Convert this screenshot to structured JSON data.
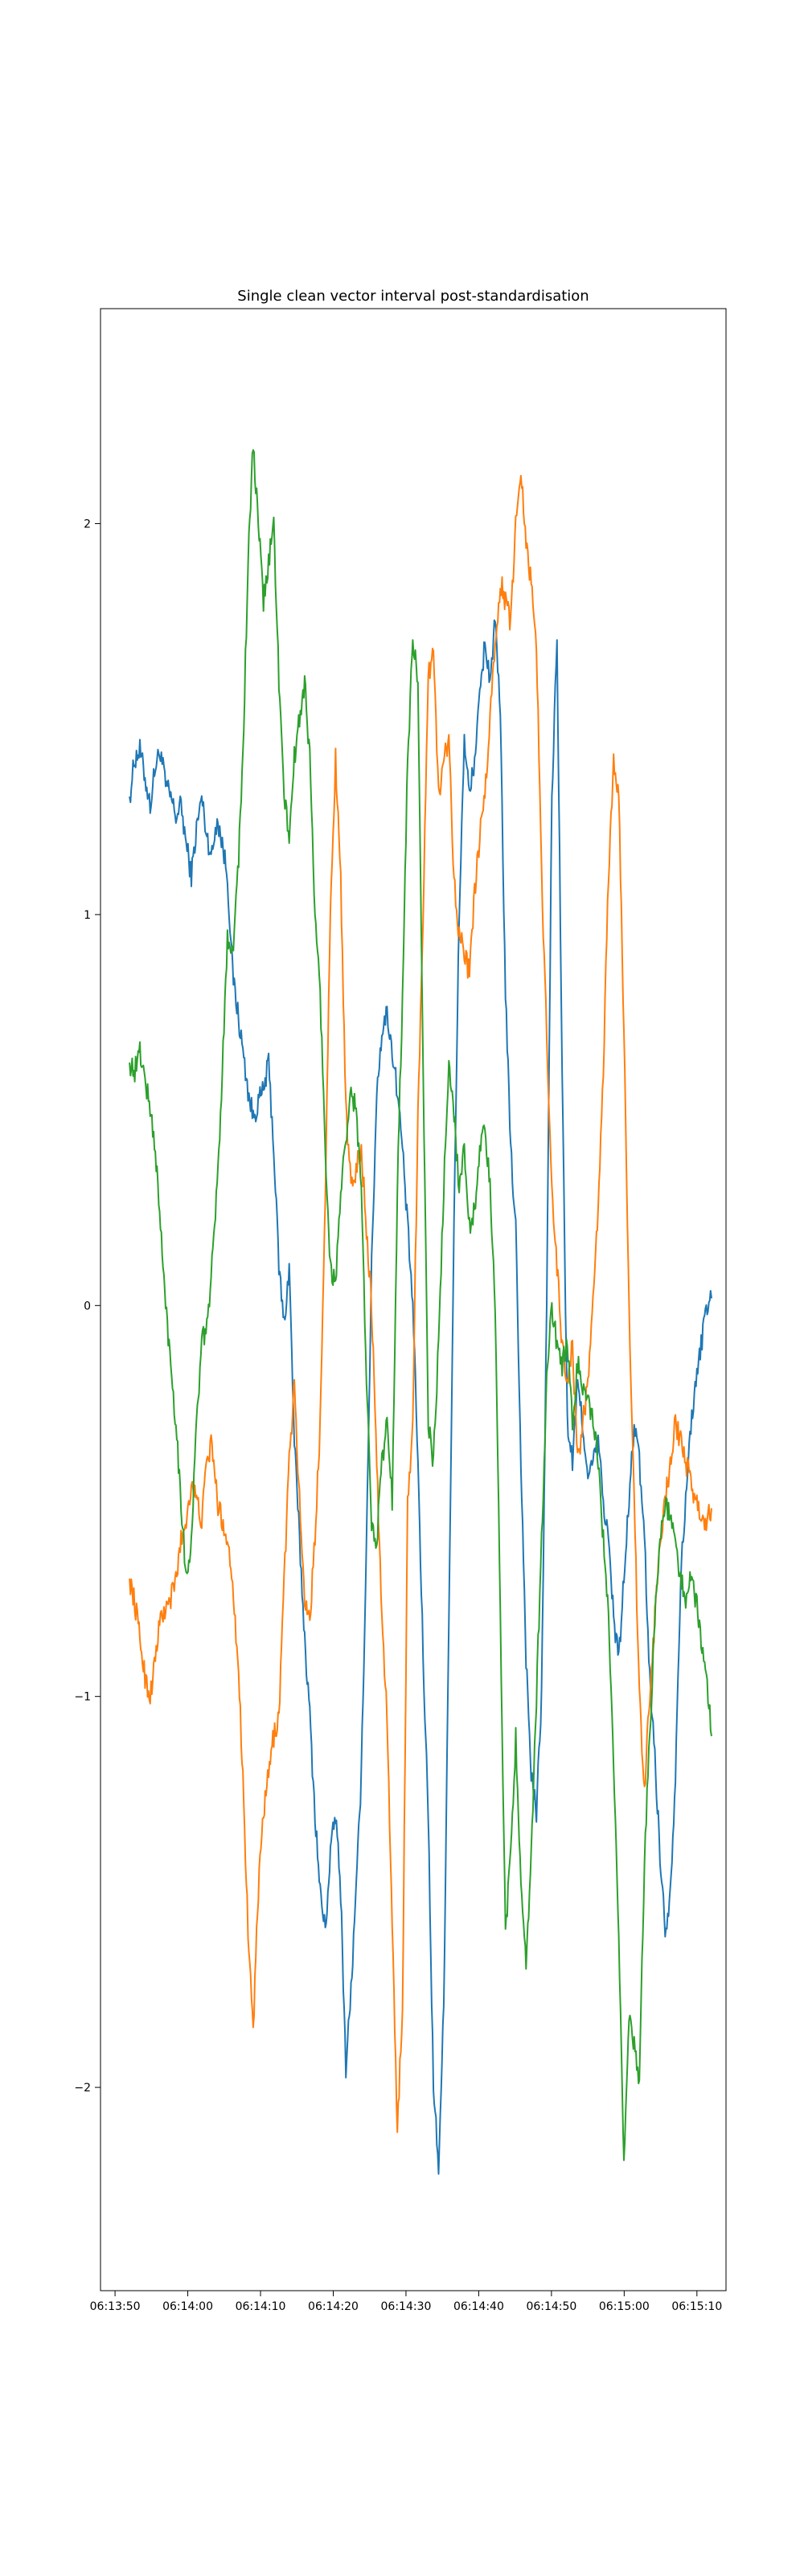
{
  "chart_data": {
    "type": "line",
    "title": "Single clean vector interval post-standardisation",
    "xlabel": "",
    "ylabel": "",
    "x_unit": "time",
    "x_start": "06:13:52",
    "x_end": "06:15:12",
    "xlim": [
      "06:13:48",
      "06:15:14"
    ],
    "ylim": [
      -2.52,
      2.55
    ],
    "grid": false,
    "legend": "none",
    "x_ticks": [
      "06:13:50",
      "06:14:00",
      "06:14:10",
      "06:14:20",
      "06:14:30",
      "06:14:40",
      "06:14:50",
      "06:15:00",
      "06:15:10"
    ],
    "y_ticks": [
      -2,
      -1,
      0,
      1,
      2
    ],
    "y_tick_labels": [
      "−2",
      "−1",
      "0",
      "1",
      "2"
    ],
    "series": [
      {
        "color": "#1f77b4",
        "values": [
          1.3,
          1.4,
          1.42,
          1.35,
          1.28,
          1.38,
          1.42,
          1.33,
          1.3,
          1.25,
          1.28,
          1.18,
          1.1,
          1.22,
          1.3,
          1.2,
          1.15,
          1.25,
          1.18,
          1.1,
          0.85,
          0.75,
          0.65,
          0.55,
          0.48,
          0.52,
          0.55,
          0.62,
          0.4,
          0.1,
          -0.05,
          0.1,
          -0.35,
          -0.6,
          -0.85,
          -1.05,
          -1.3,
          -1.5,
          -1.6,
          -1.4,
          -1.3,
          -1.5,
          -1.95,
          -1.75,
          -1.5,
          -1.2,
          -0.6,
          0.1,
          0.55,
          0.7,
          0.75,
          0.65,
          0.55,
          0.4,
          0.2,
          0.0,
          -0.4,
          -0.9,
          -1.3,
          -2.0,
          -2.2,
          -1.8,
          -0.8,
          0.2,
          1.0,
          1.45,
          1.3,
          1.4,
          1.55,
          1.7,
          1.6,
          1.75,
          1.5,
          0.8,
          0.4,
          0.2,
          -0.4,
          -0.9,
          -1.2,
          -1.3,
          -1.0,
          0.0,
          1.3,
          1.7,
          0.6,
          -0.3,
          -0.4,
          -0.2,
          -0.3,
          -0.45,
          -0.4,
          -0.35,
          -0.5,
          -0.6,
          -0.8,
          -0.9,
          -0.7,
          -0.5,
          -0.3,
          -0.4,
          -0.6,
          -0.95,
          -1.15,
          -1.4,
          -1.6,
          -1.5,
          -1.2,
          -0.7,
          -0.5,
          -0.3,
          -0.2,
          -0.1,
          0.0,
          0.02
        ]
      },
      {
        "color": "#ff7f0e",
        "values": [
          -0.7,
          -0.76,
          -0.85,
          -0.95,
          -1.0,
          -0.9,
          -0.8,
          -0.78,
          -0.75,
          -0.7,
          -0.6,
          -0.55,
          -0.45,
          -0.5,
          -0.55,
          -0.4,
          -0.35,
          -0.5,
          -0.55,
          -0.6,
          -0.7,
          -0.9,
          -1.2,
          -1.6,
          -1.85,
          -1.5,
          -1.3,
          -1.2,
          -1.1,
          -1.05,
          -0.7,
          -0.4,
          -0.2,
          -0.5,
          -0.75,
          -0.8,
          -0.6,
          -0.3,
          0.3,
          1.0,
          1.4,
          1.1,
          0.5,
          0.3,
          0.35,
          0.4,
          0.2,
          0.0,
          -0.4,
          -0.8,
          -1.05,
          -1.6,
          -2.1,
          -1.8,
          -0.5,
          -0.3,
          0.5,
          1.0,
          1.6,
          1.7,
          1.3,
          1.4,
          1.45,
          1.1,
          0.95,
          0.9,
          0.85,
          1.05,
          1.2,
          1.3,
          1.5,
          1.7,
          1.85,
          1.8,
          1.75,
          2.0,
          2.15,
          1.95,
          1.85,
          1.7,
          1.1,
          0.7,
          0.3,
          0.1,
          -0.1,
          -0.2,
          -0.1,
          -0.4,
          -0.3,
          -0.2,
          0.0,
          0.25,
          0.6,
          1.1,
          1.4,
          1.3,
          0.7,
          0.0,
          -0.5,
          -1.0,
          -1.25,
          -1.0,
          -0.8,
          -0.6,
          -0.5,
          -0.4,
          -0.3,
          -0.35,
          -0.4,
          -0.45,
          -0.5,
          -0.55,
          -0.55,
          -0.52
        ]
      },
      {
        "color": "#2ca02c",
        "values": [
          0.62,
          0.6,
          0.65,
          0.58,
          0.5,
          0.4,
          0.2,
          0.0,
          -0.15,
          -0.3,
          -0.5,
          -0.7,
          -0.6,
          -0.3,
          -0.1,
          -0.05,
          0.1,
          0.3,
          0.6,
          0.95,
          0.9,
          1.1,
          1.4,
          1.9,
          2.2,
          2.0,
          1.8,
          1.9,
          2.0,
          1.6,
          1.3,
          1.2,
          1.4,
          1.5,
          1.6,
          1.4,
          1.0,
          0.8,
          0.4,
          0.1,
          0.05,
          0.3,
          0.4,
          0.55,
          0.5,
          0.3,
          -0.2,
          -0.55,
          -0.6,
          -0.4,
          -0.3,
          -0.5,
          0.3,
          0.8,
          1.4,
          1.7,
          1.6,
          0.6,
          -0.3,
          -0.4,
          -0.1,
          0.3,
          0.6,
          0.5,
          0.3,
          0.4,
          0.2,
          0.25,
          0.4,
          0.45,
          0.3,
          0.0,
          -0.8,
          -1.6,
          -1.4,
          -1.1,
          -1.5,
          -1.7,
          -1.4,
          -1.0,
          -0.6,
          -0.2,
          0.0,
          -0.1,
          -0.15,
          -0.1,
          -0.3,
          -0.15,
          -0.2,
          -0.25,
          -0.3,
          -0.4,
          -0.6,
          -0.8,
          -1.2,
          -1.6,
          -2.2,
          -1.8,
          -1.9,
          -2.0,
          -1.4,
          -1.1,
          -0.8,
          -0.6,
          -0.5,
          -0.55,
          -0.6,
          -0.7,
          -0.75,
          -0.7,
          -0.75,
          -0.85,
          -0.95,
          -1.1
        ]
      }
    ]
  }
}
